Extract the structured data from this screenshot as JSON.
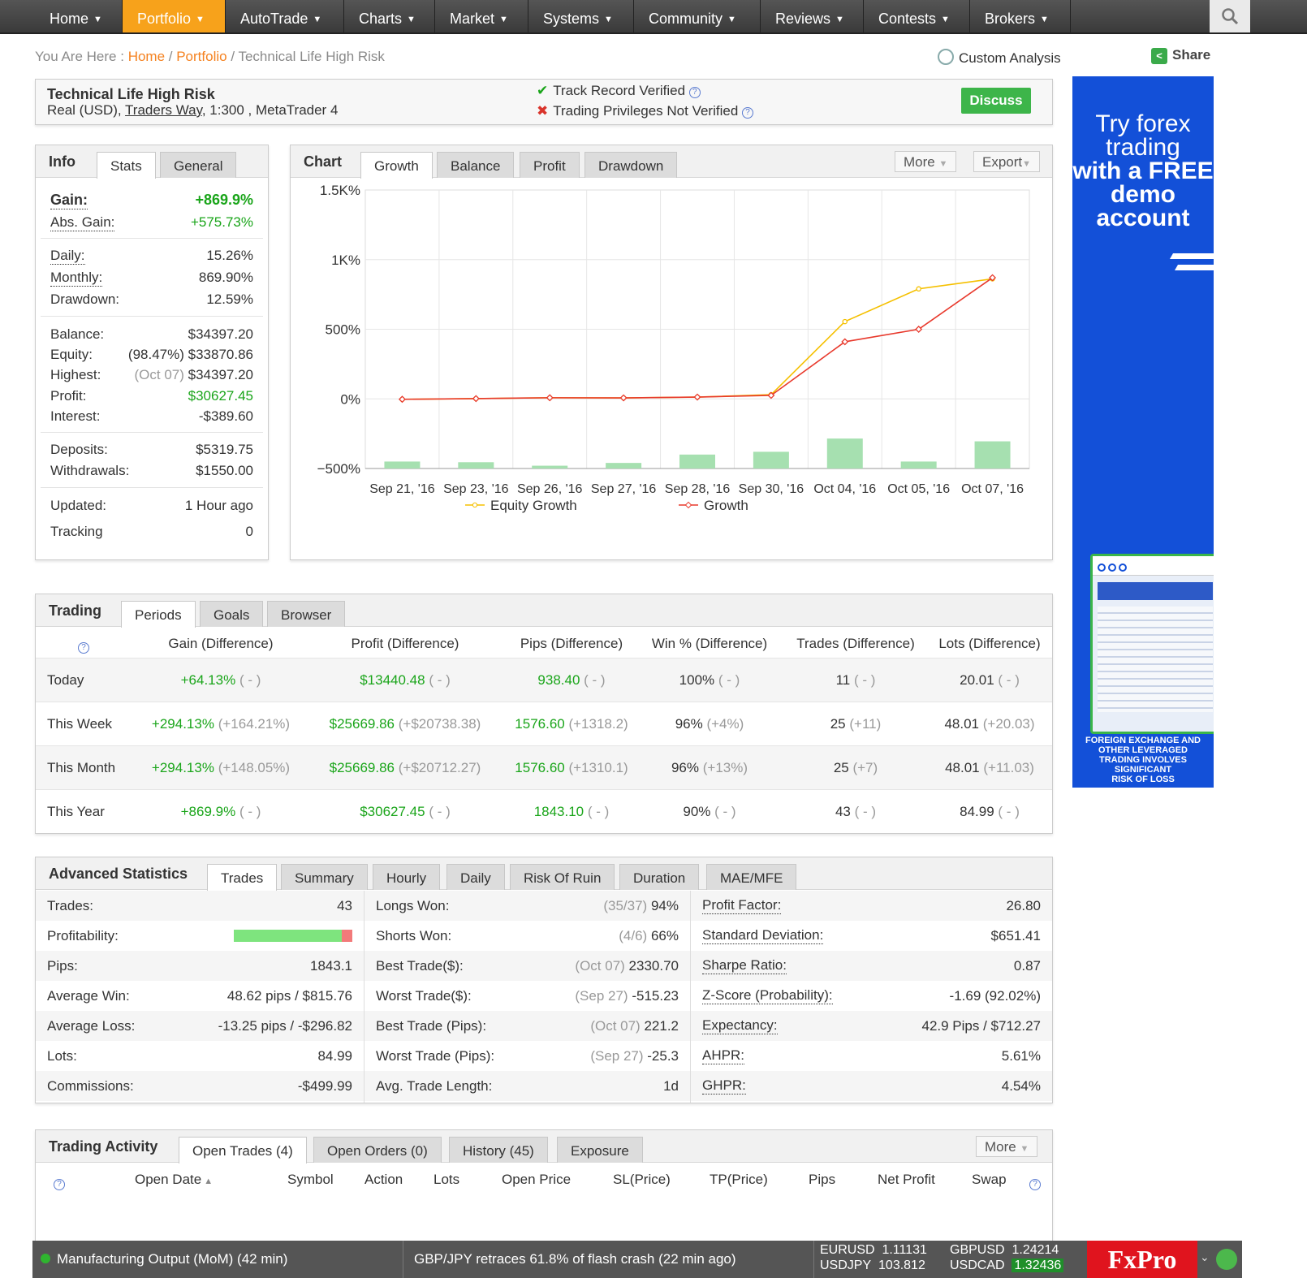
{
  "nav": {
    "items": [
      "Home",
      "Portfolio",
      "AutoTrade",
      "Charts",
      "Market",
      "Systems",
      "Community",
      "Reviews",
      "Contests",
      "Brokers"
    ],
    "active": "Portfolio"
  },
  "breadcrumb": {
    "prefix": "You Are Here :",
    "home": "Home",
    "portfolio": "Portfolio",
    "current": "Technical Life High Risk"
  },
  "custom_analysis": "Custom Analysis",
  "share": "Share",
  "account": {
    "name": "Technical Life High Risk",
    "type": "Real (USD),",
    "broker": "Traders Way",
    "details": ", 1:300 , MetaTrader 4",
    "track_record": "Track Record Verified",
    "privileges": "Trading Privileges Not Verified",
    "discuss": "Discuss"
  },
  "info": {
    "title": "Info",
    "tabs": [
      "Stats",
      "General"
    ],
    "gain_label": "Gain:",
    "gain": "+869.9%",
    "abs_gain_label": "Abs. Gain:",
    "abs_gain": "+575.73%",
    "daily_label": "Daily:",
    "daily": "15.26%",
    "monthly_label": "Monthly:",
    "monthly": "869.90%",
    "drawdown_label": "Drawdown:",
    "drawdown": "12.59%",
    "balance_label": "Balance:",
    "balance": "$34397.20",
    "equity_label": "Equity:",
    "equity_pct": "(98.47%)",
    "equity": "$33870.86",
    "highest_label": "Highest:",
    "highest_date": "(Oct 07)",
    "highest": "$34397.20",
    "profit_label": "Profit:",
    "profit": "$30627.45",
    "interest_label": "Interest:",
    "interest": "-$389.60",
    "deposits_label": "Deposits:",
    "deposits": "$5319.75",
    "withdrawals_label": "Withdrawals:",
    "withdrawals": "$1550.00",
    "updated_label": "Updated:",
    "updated": "1 Hour ago",
    "tracking_label": "Tracking",
    "tracking": "0"
  },
  "chart_panel": {
    "title": "Chart",
    "tabs": [
      "Growth",
      "Balance",
      "Profit",
      "Drawdown"
    ],
    "more": "More",
    "export": "Export"
  },
  "chart_data": {
    "type": "line",
    "categories": [
      "Sep 21, '16",
      "Sep 23, '16",
      "Sep 26, '16",
      "Sep 27, '16",
      "Sep 28, '16",
      "Sep 30, '16",
      "Oct 04, '16",
      "Oct 05, '16",
      "Oct 07, '16"
    ],
    "yticks": [
      "1.5K%",
      "1K%",
      "500%",
      "0%",
      "−500%"
    ],
    "ylim": [
      -500,
      1500
    ],
    "series": [
      {
        "name": "Equity Growth",
        "color": "#f5c000",
        "values": [
          -3,
          2,
          8,
          7,
          13,
          30,
          555,
          790,
          862
        ]
      },
      {
        "name": "Growth",
        "color": "#e8392c",
        "values": [
          -3,
          2,
          8,
          7,
          13,
          25,
          410,
          500,
          870
        ]
      }
    ],
    "bars": {
      "color": "#a6e0b0",
      "values": [
        -450,
        -455,
        -480,
        -460,
        -400,
        -380,
        -285,
        -450,
        -305
      ]
    },
    "grid": true,
    "legend": "bottom"
  },
  "trading": {
    "title": "Trading",
    "tabs": [
      "Periods",
      "Goals",
      "Browser"
    ],
    "headers": [
      "Gain (Difference)",
      "Profit (Difference)",
      "Pips (Difference)",
      "Win % (Difference)",
      "Trades (Difference)",
      "Lots (Difference)"
    ],
    "rows": [
      {
        "label": "Today",
        "gain": "+64.13%",
        "gain_d": "( - )",
        "profit": "$13440.48",
        "profit_d": "( - )",
        "pips": "938.40",
        "pips_d": "( - )",
        "win": "100%",
        "win_d": "( - )",
        "trades": "11",
        "trades_d": "( - )",
        "lots": "20.01",
        "lots_d": "( - )"
      },
      {
        "label": "This Week",
        "gain": "+294.13%",
        "gain_d": "(+164.21%)",
        "profit": "$25669.86",
        "profit_d": "(+$20738.38)",
        "pips": "1576.60",
        "pips_d": "(+1318.2)",
        "win": "96%",
        "win_d": "(+4%)",
        "trades": "25",
        "trades_d": "(+11)",
        "lots": "48.01",
        "lots_d": "(+20.03)"
      },
      {
        "label": "This Month",
        "gain": "+294.13%",
        "gain_d": "(+148.05%)",
        "profit": "$25669.86",
        "profit_d": "(+$20712.27)",
        "pips": "1576.60",
        "pips_d": "(+1310.1)",
        "win": "96%",
        "win_d": "(+13%)",
        "trades": "25",
        "trades_d": "(+7)",
        "lots": "48.01",
        "lots_d": "(+11.03)"
      },
      {
        "label": "This Year",
        "gain": "+869.9%",
        "gain_d": "( - )",
        "profit": "$30627.45",
        "profit_d": "( - )",
        "pips": "1843.10",
        "pips_d": "( - )",
        "win": "90%",
        "win_d": "( - )",
        "trades": "43",
        "trades_d": "( - )",
        "lots": "84.99",
        "lots_d": "( - )"
      }
    ]
  },
  "advanced": {
    "title": "Advanced Statistics",
    "tabs": [
      "Trades",
      "Summary",
      "Hourly",
      "Daily",
      "Risk Of Ruin",
      "Duration",
      "MAE/MFE"
    ],
    "profitability_label": "Profitability:",
    "profitability_win_fraction": 0.91,
    "col1": [
      {
        "l": "Trades:",
        "r": "43"
      },
      {
        "l": "Pips:",
        "r": "1843.1"
      },
      {
        "l": "Average Win:",
        "r": "48.62 pips / $815.76"
      },
      {
        "l": "Average Loss:",
        "r": "-13.25 pips / -$296.82"
      },
      {
        "l": "Lots:",
        "r": "84.99"
      },
      {
        "l": "Commissions:",
        "r": "-$499.99"
      }
    ],
    "col2": [
      {
        "l": "Longs Won:",
        "g": "(35/37)",
        "r": "94%"
      },
      {
        "l": "Shorts Won:",
        "g": "(4/6)",
        "r": "66%"
      },
      {
        "l": "Best Trade($):",
        "g": "(Oct 07)",
        "r": "2330.70"
      },
      {
        "l": "Worst Trade($):",
        "g": "(Sep 27)",
        "r": "-515.23"
      },
      {
        "l": "Best Trade (Pips):",
        "g": "(Oct 07)",
        "r": "221.2"
      },
      {
        "l": "Worst Trade (Pips):",
        "g": "(Sep 27)",
        "r": "-25.3"
      },
      {
        "l": "Avg. Trade Length:",
        "g": "",
        "r": "1d"
      }
    ],
    "col3": [
      {
        "l": "Profit Factor:",
        "r": "26.80"
      },
      {
        "l": "Standard Deviation:",
        "r": "$651.41"
      },
      {
        "l": "Sharpe Ratio:",
        "r": "0.87"
      },
      {
        "l": "Z-Score (Probability):",
        "r": "-1.69 (92.02%)"
      },
      {
        "l": "Expectancy:",
        "r": "42.9 Pips / $712.27"
      },
      {
        "l": "AHPR:",
        "r": "5.61%"
      },
      {
        "l": "GHPR:",
        "r": "4.54%"
      }
    ]
  },
  "activity": {
    "title": "Trading Activity",
    "tabs": [
      "Open Trades (4)",
      "Open Orders (0)",
      "History (45)",
      "Exposure"
    ],
    "more": "More",
    "headers": [
      "Open Date",
      "Symbol",
      "Action",
      "Lots",
      "Open Price",
      "SL(Price)",
      "TP(Price)",
      "Pips",
      "Net Profit",
      "Swap"
    ]
  },
  "ad": {
    "line1": "Try forex",
    "line2": "trading",
    "line3": "with a FREE",
    "line4": "demo",
    "line5": "account",
    "disclaimer": [
      "FOREIGN EXCHANGE AND",
      "OTHER LEVERAGED",
      "TRADING INVOLVES",
      "SIGNIFICANT",
      "RISK OF LOSS"
    ]
  },
  "ticker": {
    "news1": "Manufacturing Output (MoM) (42 min)",
    "news2": "GBP/JPY retraces 61.8% of flash crash  (22 min ago)",
    "q1_sym": "EURUSD",
    "q1_val": "1.11131",
    "q2_sym": "GBPUSD",
    "q2_val": "1.24214",
    "q3_sym": "USDJPY",
    "q3_val": "103.812",
    "q4_sym": "USDCAD",
    "q4_val": "1.32436",
    "brand": "FxPro"
  }
}
